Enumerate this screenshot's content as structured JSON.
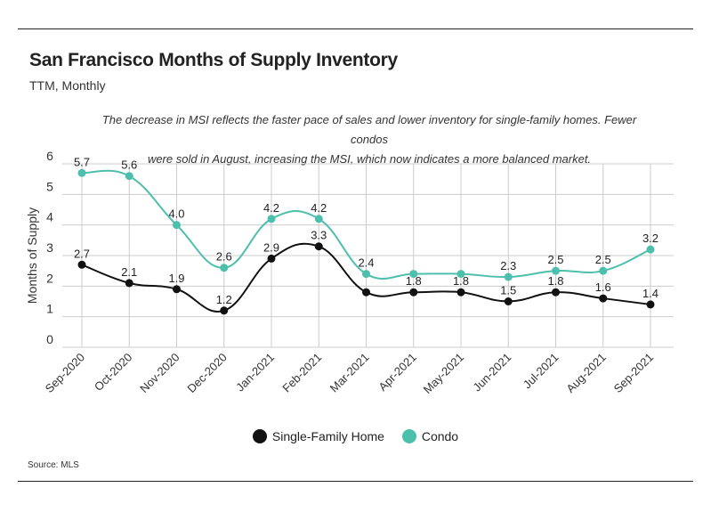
{
  "header": {
    "title": "San Francisco Months of Supply Inventory",
    "subtitle": "TTM, Monthly"
  },
  "annotation": {
    "line1": "The decrease in MSI reflects the faster pace of sales and lower inventory for single-family homes. Fewer condos",
    "line2": "were sold in August, increasing the MSI, which now indicates a more balanced market."
  },
  "footer": {
    "source": "Source:  MLS"
  },
  "colors": {
    "single_family": "#111111",
    "condo": "#4dbfad",
    "grid": "#cccccc",
    "axis_text": "#333333"
  },
  "chart_data": {
    "type": "line",
    "title": "San Francisco Months of Supply Inventory",
    "subtitle": "TTM, Monthly",
    "ylabel": "Months of Supply",
    "xlabel": "",
    "ylim": [
      0,
      6
    ],
    "yticks": [
      0,
      1,
      2,
      3,
      4,
      5,
      6
    ],
    "categories": [
      "Sep-2020",
      "Oct-2020",
      "Nov-2020",
      "Dec-2020",
      "Jan-2021",
      "Feb-2021",
      "Mar-2021",
      "Apr-2021",
      "May-2021",
      "Jun-2021",
      "Jul-2021",
      "Aug-2021",
      "Sep-2021"
    ],
    "series": [
      {
        "name": "Single-Family Home",
        "color": "#111111",
        "values": [
          2.7,
          2.1,
          1.9,
          1.2,
          2.9,
          3.3,
          1.8,
          1.8,
          1.8,
          1.5,
          1.8,
          1.6,
          1.4
        ],
        "labels": [
          "2.7",
          "2.1",
          "1.9",
          "1.2",
          "2.9",
          "3.3",
          null,
          "1.8",
          "1.8",
          "1.5",
          "1.8",
          "1.6",
          "1.4"
        ]
      },
      {
        "name": "Condo",
        "color": "#4dbfad",
        "values": [
          5.7,
          5.6,
          4.0,
          2.6,
          4.2,
          4.2,
          2.4,
          2.4,
          2.4,
          2.3,
          2.5,
          2.5,
          3.2
        ],
        "labels": [
          "5.7",
          "5.6",
          "4.0",
          "2.6",
          "4.2",
          "4.2",
          "2.4",
          null,
          null,
          "2.3",
          "2.5",
          "2.5",
          "3.2"
        ]
      }
    ],
    "grid": true,
    "legend": "bottom-center",
    "data_labels": true
  }
}
